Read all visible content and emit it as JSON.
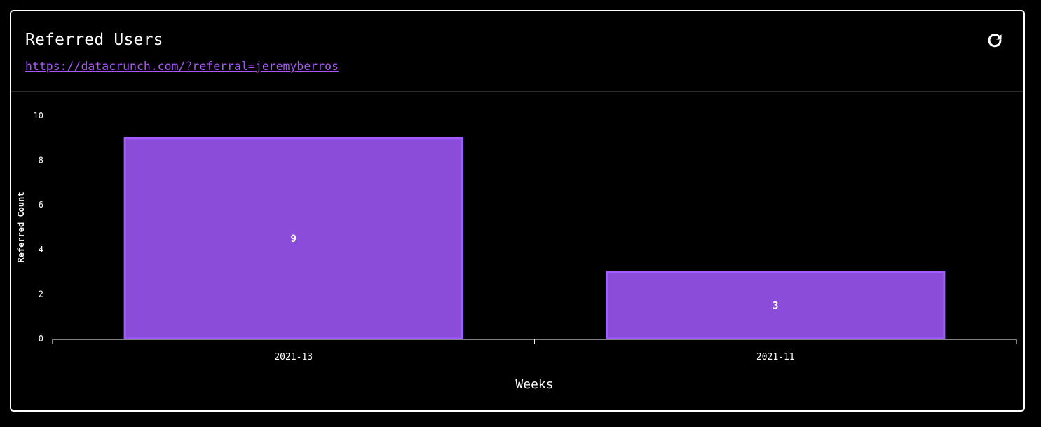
{
  "header": {
    "title": "Referred Users",
    "referral_url": "https://datacrunch.com/?referral=jeremyberros",
    "refresh_icon": "refresh-icon"
  },
  "colors": {
    "background": "#000000",
    "card_border": "#ffffff",
    "bar_fill": "#8b4cd9",
    "bar_stroke": "#a05cff",
    "link": "#a855f7",
    "text": "#ffffff"
  },
  "chart_data": {
    "type": "bar",
    "categories": [
      "2021-13",
      "2021-11"
    ],
    "values": [
      9,
      3
    ],
    "data_labels": [
      "9",
      "3"
    ],
    "xlabel": "Weeks",
    "ylabel": "Referred Count",
    "ylim": [
      0,
      10
    ],
    "yticks": [
      0,
      2,
      4,
      6,
      8,
      10
    ],
    "grid": false,
    "legend": "none"
  }
}
